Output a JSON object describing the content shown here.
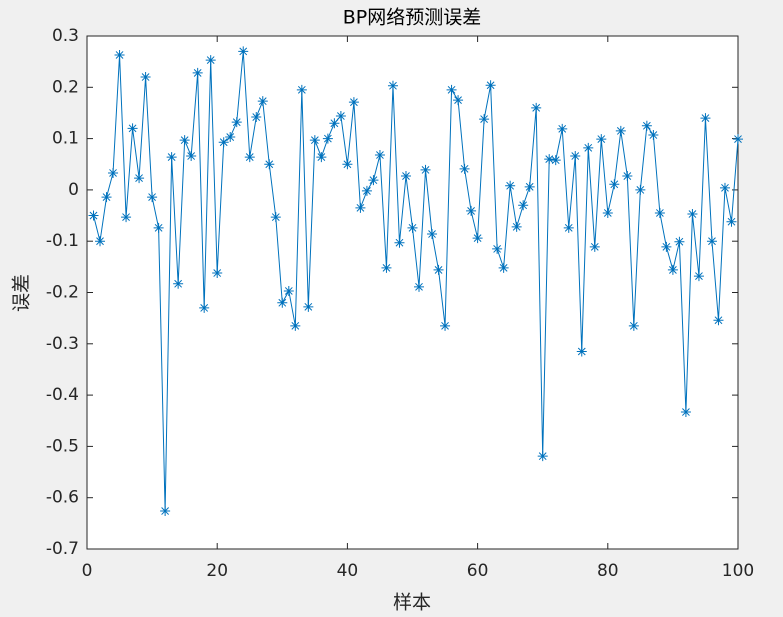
{
  "chart_data": {
    "type": "line",
    "title": "BP网络预测误差",
    "x_label": "样本",
    "y_label": "误差",
    "x": [
      1,
      2,
      3,
      4,
      5,
      6,
      7,
      8,
      9,
      10,
      11,
      12,
      13,
      14,
      15,
      16,
      17,
      18,
      19,
      20,
      21,
      22,
      23,
      24,
      25,
      26,
      27,
      28,
      29,
      30,
      31,
      32,
      33,
      34,
      35,
      36,
      37,
      38,
      39,
      40,
      41,
      42,
      43,
      44,
      45,
      46,
      47,
      48,
      49,
      50,
      51,
      52,
      53,
      54,
      55,
      56,
      57,
      58,
      59,
      60,
      61,
      62,
      63,
      64,
      65,
      66,
      67,
      68,
      69,
      70,
      71,
      72,
      73,
      74,
      75,
      76,
      77,
      78,
      79,
      80,
      81,
      82,
      83,
      84,
      85,
      86,
      87,
      88,
      89,
      90,
      91,
      92,
      93,
      94,
      95,
      96,
      97,
      98,
      99,
      100
    ],
    "series": [
      {
        "color": "#0072bd",
        "marker": "*",
        "values": [
          -0.05,
          -0.1,
          -0.014,
          0.033,
          0.263,
          -0.053,
          0.12,
          0.023,
          0.22,
          -0.014,
          -0.074,
          -0.626,
          0.064,
          -0.183,
          0.097,
          0.066,
          0.228,
          -0.23,
          0.253,
          -0.162,
          0.093,
          0.103,
          0.132,
          0.27,
          0.064,
          0.142,
          0.173,
          0.05,
          -0.053,
          -0.22,
          -0.197,
          -0.265,
          0.195,
          -0.228,
          0.097,
          0.064,
          0.1,
          0.13,
          0.144,
          0.05,
          0.171,
          -0.035,
          -0.002,
          0.019,
          0.068,
          -0.152,
          0.203,
          -0.103,
          0.027,
          -0.074,
          -0.189,
          0.039,
          -0.086,
          -0.156,
          -0.265,
          0.195,
          0.175,
          0.041,
          -0.041,
          -0.094,
          0.138,
          0.204,
          -0.115,
          -0.152,
          0.008,
          -0.072,
          -0.03,
          0.006,
          0.16,
          -0.519,
          0.06,
          0.058,
          0.119,
          -0.074,
          0.066,
          -0.315,
          0.082,
          -0.111,
          0.099,
          -0.045,
          0.011,
          0.115,
          0.027,
          -0.265,
          0,
          0.125,
          0.107,
          -0.045,
          -0.111,
          -0.156,
          -0.101,
          -0.433,
          -0.047,
          -0.168,
          0.14,
          -0.1,
          -0.254,
          0.004,
          -0.062,
          0.099
        ]
      }
    ],
    "xlim": [
      0,
      100
    ],
    "xticks": [
      0,
      20,
      40,
      60,
      80,
      100
    ],
    "ylim": [
      -0.7,
      0.3
    ],
    "yticks": [
      -0.7,
      -0.6,
      -0.5,
      -0.4,
      -0.3,
      -0.2,
      -0.1,
      0,
      0.1,
      0.2,
      0.3
    ],
    "grid": false
  }
}
